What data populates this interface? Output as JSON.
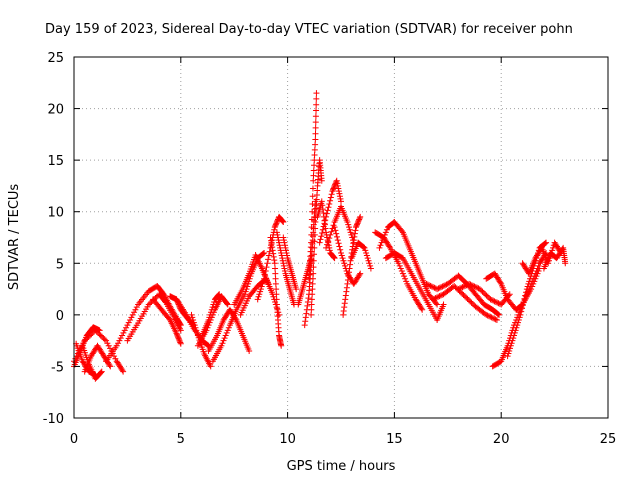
{
  "chart_data": {
    "type": "scatter",
    "title": "Day 159 of 2023, Sidereal Day-to-day VTEC variation (SDTVAR) for receiver pohn",
    "xlabel": "GPS time / hours",
    "ylabel": "SDTVAR / TECUs",
    "xlim": [
      0,
      25
    ],
    "ylim": [
      -10,
      25
    ],
    "xticks": [
      0,
      5,
      10,
      15,
      20,
      25
    ],
    "yticks": [
      -10,
      -5,
      0,
      5,
      10,
      15,
      20,
      25
    ],
    "xtick_labels": [
      "0",
      "5",
      "10",
      "15",
      "20",
      "25"
    ],
    "ytick_labels": [
      "-10",
      "-5",
      "0",
      "5",
      "10",
      "15",
      "20",
      "25"
    ],
    "grid": true,
    "marker": "+",
    "series": [
      {
        "name": "SDTVAR",
        "color": "#ff0000",
        "tracks": [
          [
            [
              0.0,
              -5.0
            ],
            [
              0.3,
              -3.5
            ],
            [
              0.6,
              -2.0
            ],
            [
              0.9,
              -1.2
            ],
            [
              1.2,
              -1.5
            ]
          ],
          [
            [
              0.1,
              -2.8
            ],
            [
              0.4,
              -4.5
            ],
            [
              0.7,
              -5.5
            ],
            [
              1.0,
              -5.8
            ]
          ],
          [
            [
              0.4,
              -3.0
            ],
            [
              0.7,
              -4.8
            ],
            [
              1.0,
              -6.2
            ],
            [
              1.3,
              -5.5
            ]
          ],
          [
            [
              0.5,
              -5.5
            ],
            [
              0.8,
              -4.0
            ],
            [
              1.1,
              -3.0
            ],
            [
              1.4,
              -4.0
            ],
            [
              1.7,
              -5.0
            ]
          ],
          [
            [
              0.0,
              -4.5
            ],
            [
              0.5,
              -2.5
            ],
            [
              1.0,
              -1.5
            ],
            [
              1.5,
              -2.5
            ],
            [
              2.0,
              -4.5
            ],
            [
              2.3,
              -5.5
            ]
          ],
          [
            [
              1.5,
              -4.5
            ],
            [
              2.0,
              -3.0
            ],
            [
              2.5,
              -1.0
            ],
            [
              3.0,
              1.0
            ],
            [
              3.5,
              2.3
            ],
            [
              3.9,
              2.8
            ],
            [
              4.2,
              2.0
            ],
            [
              4.5,
              0.8
            ],
            [
              4.8,
              -0.3
            ],
            [
              5.0,
              -1.0
            ]
          ],
          [
            [
              2.5,
              -2.5
            ],
            [
              3.0,
              -0.8
            ],
            [
              3.5,
              1.0
            ],
            [
              4.0,
              2.0
            ],
            [
              4.3,
              1.2
            ],
            [
              4.7,
              -0.3
            ],
            [
              5.0,
              -1.5
            ]
          ],
          [
            [
              3.7,
              1.5
            ],
            [
              4.1,
              0.5
            ],
            [
              4.5,
              -0.5
            ],
            [
              4.8,
              -1.8
            ],
            [
              5.0,
              -2.8
            ]
          ],
          [
            [
              4.5,
              1.8
            ],
            [
              4.8,
              1.5
            ],
            [
              5.0,
              0.5
            ],
            [
              5.3,
              -0.3
            ],
            [
              5.6,
              -1.0
            ]
          ],
          [
            [
              4.8,
              1.5
            ],
            [
              5.2,
              0.2
            ],
            [
              5.6,
              -1.3
            ],
            [
              6.0,
              -2.5
            ],
            [
              6.3,
              -3.0
            ]
          ],
          [
            [
              5.5,
              0.0
            ],
            [
              5.8,
              -2.0
            ],
            [
              6.1,
              -3.8
            ],
            [
              6.4,
              -5.0
            ]
          ],
          [
            [
              5.8,
              -3.0
            ],
            [
              6.2,
              -1.5
            ],
            [
              6.6,
              0.5
            ],
            [
              6.9,
              1.8
            ],
            [
              7.2,
              1.0
            ]
          ],
          [
            [
              6.0,
              -2.0
            ],
            [
              6.3,
              -0.5
            ],
            [
              6.6,
              1.5
            ],
            [
              6.8,
              2.0
            ]
          ],
          [
            [
              6.3,
              -3.5
            ],
            [
              6.7,
              -2.0
            ],
            [
              7.0,
              -0.5
            ],
            [
              7.3,
              0.5
            ],
            [
              7.6,
              -0.5
            ],
            [
              7.9,
              -2.0
            ],
            [
              8.2,
              -3.5
            ]
          ],
          [
            [
              6.5,
              -4.5
            ],
            [
              6.9,
              -3.0
            ],
            [
              7.3,
              -1.0
            ],
            [
              7.6,
              0.5
            ],
            [
              8.0,
              2.0
            ],
            [
              8.3,
              4.0
            ],
            [
              8.6,
              5.5
            ],
            [
              8.9,
              6.0
            ]
          ],
          [
            [
              7.5,
              1.0
            ],
            [
              7.9,
              2.5
            ],
            [
              8.2,
              4.0
            ],
            [
              8.5,
              5.8
            ],
            [
              8.8,
              4.5
            ],
            [
              9.1,
              3.0
            ]
          ],
          [
            [
              7.8,
              0.0
            ],
            [
              8.2,
              1.8
            ],
            [
              8.6,
              2.8
            ],
            [
              9.0,
              3.5
            ],
            [
              9.3,
              2.0
            ],
            [
              9.6,
              0.0
            ]
          ],
          [
            [
              8.6,
              1.5
            ],
            [
              8.9,
              3.5
            ],
            [
              9.2,
              6.5
            ],
            [
              9.4,
              8.5
            ],
            [
              9.6,
              9.5
            ],
            [
              9.8,
              9.0
            ]
          ],
          [
            [
              9.2,
              7.5
            ],
            [
              9.4,
              5.0
            ],
            [
              9.5,
              1.0
            ],
            [
              9.6,
              -2.0
            ],
            [
              9.7,
              -3.0
            ]
          ],
          [
            [
              9.5,
              8.0
            ],
            [
              9.7,
              6.0
            ],
            [
              9.9,
              4.0
            ],
            [
              10.1,
              2.5
            ],
            [
              10.3,
              1.0
            ]
          ],
          [
            [
              9.8,
              7.5
            ],
            [
              10.0,
              5.5
            ],
            [
              10.2,
              4.0
            ],
            [
              10.4,
              2.5
            ]
          ],
          [
            [
              10.5,
              1.0
            ],
            [
              10.7,
              2.5
            ],
            [
              10.9,
              4.0
            ],
            [
              11.1,
              5.5
            ]
          ],
          [
            [
              10.8,
              -1.0
            ],
            [
              11.0,
              2.0
            ],
            [
              11.1,
              5.0
            ],
            [
              11.2,
              8.0
            ],
            [
              11.3,
              11.0
            ]
          ],
          [
            [
              11.0,
              3.5
            ],
            [
              11.1,
              7.0
            ],
            [
              11.2,
              13.0
            ],
            [
              11.3,
              17.0
            ],
            [
              11.35,
              21.5
            ]
          ],
          [
            [
              11.1,
              0.0
            ],
            [
              11.2,
              4.0
            ],
            [
              11.3,
              9.0
            ],
            [
              11.4,
              12.5
            ],
            [
              11.5,
              15.0
            ],
            [
              11.6,
              13.0
            ]
          ],
          [
            [
              11.4,
              9.5
            ],
            [
              11.6,
              11.0
            ],
            [
              11.8,
              8.0
            ],
            [
              12.0,
              6.0
            ],
            [
              12.2,
              5.5
            ]
          ],
          [
            [
              11.5,
              7.0
            ],
            [
              11.8,
              9.5
            ],
            [
              12.1,
              12.0
            ],
            [
              12.3,
              13.0
            ],
            [
              12.5,
              11.0
            ]
          ],
          [
            [
              11.8,
              6.5
            ],
            [
              12.2,
              9.0
            ],
            [
              12.5,
              10.5
            ],
            [
              12.8,
              9.0
            ],
            [
              13.1,
              7.0
            ]
          ],
          [
            [
              12.2,
              8.5
            ],
            [
              12.5,
              6.0
            ],
            [
              12.8,
              4.0
            ],
            [
              13.1,
              3.0
            ],
            [
              13.4,
              4.0
            ]
          ],
          [
            [
              12.6,
              0.0
            ],
            [
              12.8,
              3.0
            ],
            [
              13.0,
              6.0
            ],
            [
              13.2,
              8.5
            ],
            [
              13.4,
              9.5
            ]
          ],
          [
            [
              13.0,
              5.5
            ],
            [
              13.3,
              7.0
            ],
            [
              13.6,
              6.5
            ],
            [
              13.9,
              4.5
            ]
          ],
          [
            [
              14.1,
              8.0
            ],
            [
              14.5,
              7.5
            ],
            [
              14.8,
              6.5
            ],
            [
              15.2,
              5.0
            ],
            [
              15.6,
              3.0
            ],
            [
              16.0,
              1.5
            ],
            [
              16.3,
              0.5
            ]
          ],
          [
            [
              14.3,
              6.5
            ],
            [
              14.7,
              8.5
            ],
            [
              15.0,
              9.0
            ],
            [
              15.4,
              8.0
            ],
            [
              15.7,
              6.5
            ],
            [
              16.0,
              5.0
            ],
            [
              16.3,
              3.5
            ],
            [
              16.6,
              2.0
            ],
            [
              17.0,
              1.0
            ]
          ],
          [
            [
              14.6,
              5.5
            ],
            [
              15.0,
              6.0
            ],
            [
              15.4,
              5.5
            ],
            [
              15.8,
              4.0
            ],
            [
              16.2,
              2.5
            ],
            [
              16.6,
              1.0
            ],
            [
              17.0,
              -0.5
            ],
            [
              17.3,
              1.0
            ]
          ],
          [
            [
              16.5,
              3.0
            ],
            [
              17.0,
              2.5
            ],
            [
              17.5,
              3.0
            ],
            [
              18.0,
              3.8
            ],
            [
              18.4,
              3.0
            ],
            [
              18.8,
              2.0
            ],
            [
              19.2,
              1.0
            ],
            [
              19.6,
              0.5
            ],
            [
              19.9,
              0.0
            ]
          ],
          [
            [
              16.8,
              1.5
            ],
            [
              17.3,
              2.0
            ],
            [
              17.8,
              2.8
            ],
            [
              18.3,
              1.8
            ],
            [
              18.8,
              0.8
            ],
            [
              19.3,
              0.0
            ],
            [
              19.8,
              -0.5
            ]
          ],
          [
            [
              18.0,
              2.5
            ],
            [
              18.5,
              3.0
            ],
            [
              19.0,
              2.5
            ],
            [
              19.5,
              1.5
            ],
            [
              20.0,
              1.0
            ],
            [
              20.4,
              2.0
            ]
          ],
          [
            [
              19.3,
              3.5
            ],
            [
              19.7,
              4.0
            ],
            [
              20.0,
              3.0
            ],
            [
              20.3,
              1.5
            ],
            [
              20.7,
              0.5
            ],
            [
              21.0,
              1.0
            ],
            [
              21.4,
              2.5
            ],
            [
              21.8,
              4.5
            ]
          ],
          [
            [
              19.6,
              -5.0
            ],
            [
              20.0,
              -4.5
            ],
            [
              20.3,
              -3.0
            ],
            [
              20.6,
              -1.0
            ],
            [
              21.0,
              1.0
            ],
            [
              21.4,
              3.0
            ],
            [
              21.8,
              5.0
            ],
            [
              22.1,
              6.0
            ]
          ],
          [
            [
              20.3,
              -4.0
            ],
            [
              20.6,
              -2.0
            ],
            [
              20.9,
              0.0
            ],
            [
              21.2,
              2.5
            ],
            [
              21.5,
              4.5
            ],
            [
              21.8,
              6.5
            ],
            [
              22.1,
              7.0
            ]
          ],
          [
            [
              21.0,
              5.0
            ],
            [
              21.3,
              4.0
            ],
            [
              21.6,
              5.5
            ],
            [
              21.9,
              6.5
            ],
            [
              22.2,
              5.0
            ],
            [
              22.5,
              7.0
            ],
            [
              22.8,
              6.0
            ]
          ],
          [
            [
              22.0,
              4.5
            ],
            [
              22.3,
              6.0
            ],
            [
              22.6,
              5.5
            ],
            [
              22.9,
              6.5
            ],
            [
              23.0,
              5.0
            ]
          ]
        ]
      }
    ]
  }
}
